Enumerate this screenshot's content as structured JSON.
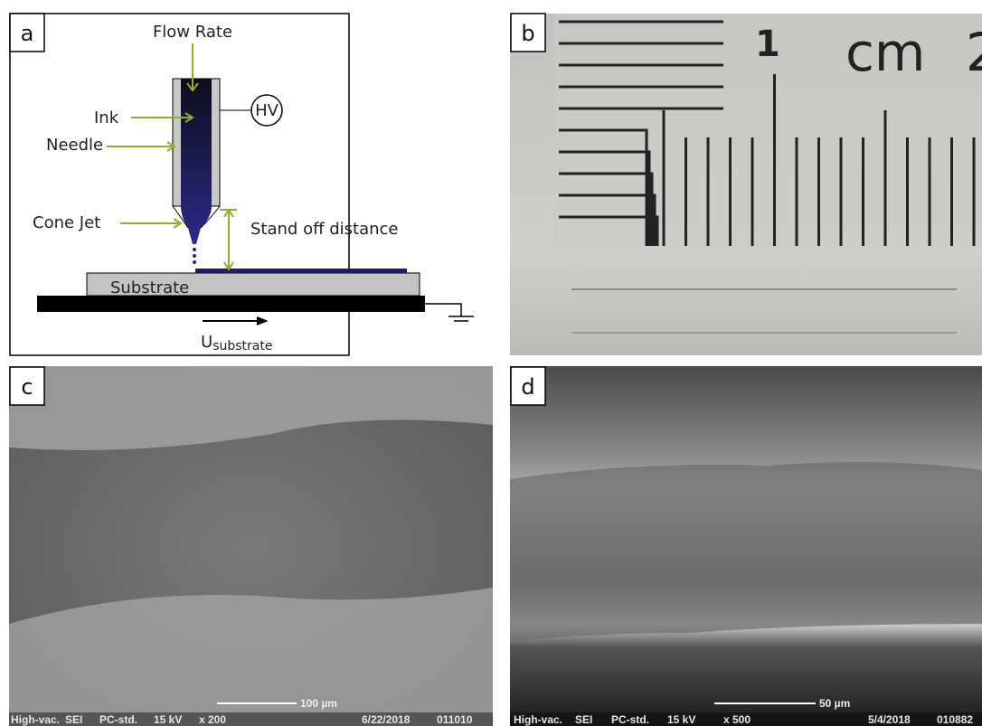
{
  "panel_a": {
    "label": "a",
    "flow_rate": "Flow Rate",
    "ink": "Ink",
    "needle": "Needle",
    "hv": "HV",
    "cone_jet": "Cone Jet",
    "stand_off": "Stand off distance",
    "substrate": "Substrate",
    "velocity": {
      "symbol": "U",
      "subscript": "substrate"
    }
  },
  "panel_b": {
    "label": "b",
    "ruler_mark": "1",
    "ruler_unit": "cm",
    "ruler_mark_next": "2"
  },
  "panel_c": {
    "label": "c",
    "scale_bar": "100 µm",
    "info": [
      "High-vac.",
      "SEI",
      "PC-std.",
      "15 kV",
      "x 200",
      "6/22/2018",
      "011010"
    ]
  },
  "panel_d": {
    "label": "d",
    "scale_bar": "50 µm",
    "info": [
      "High-vac.",
      "SEI",
      "PC-std.",
      "15 kV",
      "x 500",
      "5/4/2018",
      "010882"
    ]
  }
}
